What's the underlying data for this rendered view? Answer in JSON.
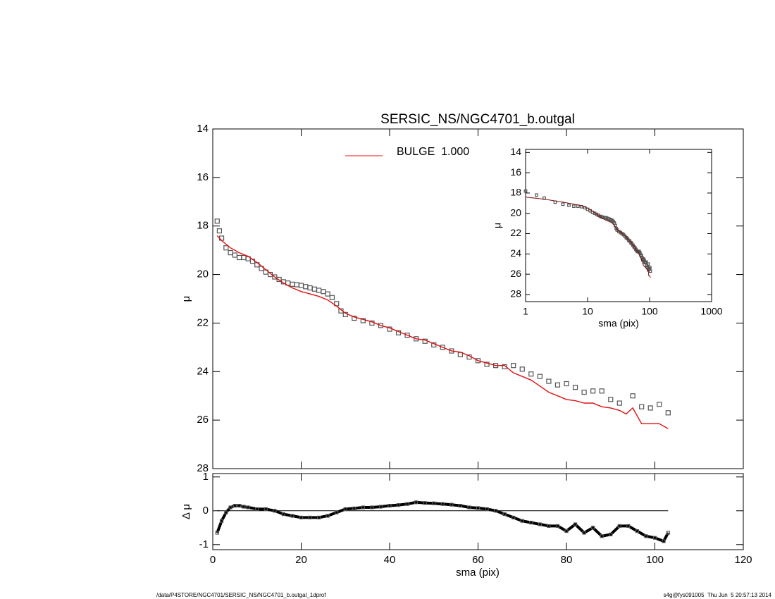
{
  "chart_data": [
    {
      "type": "scatter",
      "title": "SERSIC_NS/NGC4701_b.outgal",
      "y_label": "μ",
      "xlim": [
        0,
        120
      ],
      "ylim": [
        14,
        28
      ],
      "y_inverted": true,
      "yticks": [
        14,
        16,
        18,
        20,
        22,
        24,
        26,
        28
      ],
      "legend": "top",
      "series": [
        {
          "name": null,
          "kind": "points",
          "color": "#555555",
          "x": [
            1,
            1.5,
            2,
            3,
            4,
            5,
            6,
            7,
            8,
            9,
            10,
            11,
            12,
            13,
            14,
            15,
            16,
            17,
            18,
            19,
            20,
            21,
            22,
            23,
            24,
            25,
            26,
            27,
            28,
            29,
            30,
            32,
            34,
            36,
            38,
            40,
            42,
            44,
            46,
            48,
            50,
            52,
            54,
            56,
            58,
            60,
            62,
            64,
            66,
            68,
            70,
            72,
            74,
            76,
            78,
            80,
            82,
            84,
            86,
            88,
            90,
            92,
            95,
            97,
            99,
            101,
            103
          ],
          "values": [
            17.8,
            18.2,
            18.5,
            18.9,
            19.1,
            19.2,
            19.3,
            19.3,
            19.35,
            19.45,
            19.6,
            19.75,
            19.9,
            20.0,
            20.1,
            20.2,
            20.3,
            20.35,
            20.4,
            20.42,
            20.45,
            20.5,
            20.55,
            20.6,
            20.65,
            20.7,
            20.8,
            20.95,
            21.2,
            21.5,
            21.65,
            21.8,
            21.9,
            22.0,
            22.1,
            22.25,
            22.4,
            22.5,
            22.65,
            22.75,
            22.9,
            23.0,
            23.15,
            23.3,
            23.4,
            23.55,
            23.7,
            23.75,
            23.8,
            23.75,
            23.9,
            24.1,
            24.2,
            24.4,
            24.55,
            24.5,
            24.65,
            24.85,
            24.8,
            24.8,
            25.15,
            25.3,
            25.0,
            25.45,
            25.5,
            25.35,
            25.7
          ]
        },
        {
          "name": "BULGE  1.000",
          "kind": "line",
          "color": "#e01010",
          "x": [
            1,
            2,
            4,
            6,
            8,
            10,
            12,
            14,
            16,
            18,
            20,
            22,
            24,
            26,
            28,
            30,
            32,
            34,
            36,
            38,
            40,
            42,
            44,
            46,
            48,
            50,
            52,
            54,
            56,
            58,
            60,
            62,
            64,
            66,
            68,
            70,
            72,
            74,
            76,
            78,
            80,
            82,
            84,
            86,
            88,
            90,
            92,
            93.5,
            95,
            97,
            99,
            101,
            103
          ],
          "values": [
            18.4,
            18.6,
            18.9,
            19.1,
            19.25,
            19.5,
            19.8,
            20.1,
            20.35,
            20.55,
            20.7,
            20.8,
            20.9,
            21.05,
            21.3,
            21.6,
            21.75,
            21.85,
            21.95,
            22.1,
            22.2,
            22.35,
            22.5,
            22.65,
            22.7,
            22.85,
            23.0,
            23.15,
            23.2,
            23.35,
            23.55,
            23.65,
            23.75,
            23.75,
            24.05,
            24.2,
            24.35,
            24.6,
            24.85,
            25.0,
            25.15,
            25.2,
            25.3,
            25.3,
            25.45,
            25.5,
            25.6,
            25.75,
            25.5,
            26.15,
            26.15,
            26.15,
            26.35
          ]
        }
      ]
    },
    {
      "type": "scatter",
      "y_label": "Δ μ",
      "x_label": "sma (pix)",
      "xlim": [
        0,
        120
      ],
      "xticks": [
        0,
        20,
        40,
        60,
        80,
        100,
        120
      ],
      "ylim": [
        -1.15,
        1.1
      ],
      "yticks": [
        -1,
        0,
        1
      ],
      "x": [
        1,
        2,
        3,
        4,
        5,
        6,
        7,
        8,
        10,
        12,
        14,
        16,
        18,
        20,
        22,
        24,
        26,
        28,
        30,
        32,
        34,
        36,
        38,
        40,
        42,
        44,
        46,
        48,
        50,
        52,
        54,
        56,
        58,
        60,
        62,
        64,
        66,
        68,
        70,
        72,
        74,
        76,
        78,
        80,
        82,
        84,
        86,
        88,
        90,
        92,
        94,
        96,
        98,
        100,
        102,
        103
      ],
      "values": [
        -0.65,
        -0.3,
        -0.05,
        0.1,
        0.15,
        0.15,
        0.12,
        0.1,
        0.05,
        0.05,
        0.0,
        -0.1,
        -0.15,
        -0.2,
        -0.2,
        -0.2,
        -0.15,
        -0.05,
        0.05,
        0.07,
        0.1,
        0.1,
        0.12,
        0.15,
        0.17,
        0.2,
        0.25,
        0.23,
        0.22,
        0.2,
        0.18,
        0.15,
        0.1,
        0.08,
        0.05,
        0.0,
        -0.1,
        -0.2,
        -0.3,
        -0.35,
        -0.4,
        -0.45,
        -0.45,
        -0.6,
        -0.4,
        -0.65,
        -0.5,
        -0.75,
        -0.7,
        -0.45,
        -0.45,
        -0.6,
        -0.75,
        -0.8,
        -0.9,
        -0.65
      ],
      "color": "#555555"
    },
    {
      "type": "inset",
      "x_label": "sma (pix)",
      "y_label": "μ",
      "log_x": true,
      "xlim": [
        1,
        1000
      ],
      "xticks": [
        1,
        10,
        100,
        1000
      ],
      "ylim": [
        13.7,
        28.7
      ],
      "yticks": [
        14,
        16,
        18,
        20,
        22,
        24,
        26,
        28
      ],
      "model_color": "#7a1010"
    }
  ],
  "footer": {
    "left": "/data/P4STORE/NGC4701/SERSIC_NS/NGC4701_b.outgal_1dprof",
    "right": "s4g@fys091005  Thu Jun  5 20:57:13 2014"
  }
}
